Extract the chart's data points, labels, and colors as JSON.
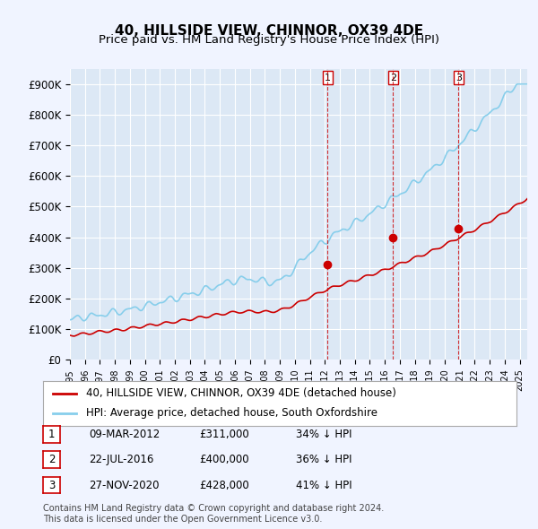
{
  "title": "40, HILLSIDE VIEW, CHINNOR, OX39 4DE",
  "subtitle": "Price paid vs. HM Land Registry's House Price Index (HPI)",
  "ylabel_ticks": [
    "£0",
    "£100K",
    "£200K",
    "£300K",
    "£400K",
    "£500K",
    "£600K",
    "£700K",
    "£800K",
    "£900K"
  ],
  "ylim": [
    0,
    950000
  ],
  "xlim_start": 1995.0,
  "xlim_end": 2025.5,
  "hpi_color": "#87CEEB",
  "price_color": "#CC0000",
  "sale_color": "#CC0000",
  "vline_color": "#CC0000",
  "background_color": "#f0f4ff",
  "plot_bg_color": "#dce8f5",
  "legend_label_red": "40, HILLSIDE VIEW, CHINNOR, OX39 4DE (detached house)",
  "legend_label_blue": "HPI: Average price, detached house, South Oxfordshire",
  "sales": [
    {
      "num": 1,
      "date_dec": 2012.19,
      "price": 311000,
      "label": "09-MAR-2012",
      "price_str": "£311,000",
      "hpi_str": "34% ↓ HPI"
    },
    {
      "num": 2,
      "date_dec": 2016.55,
      "price": 400000,
      "label": "22-JUL-2016",
      "price_str": "£400,000",
      "hpi_str": "36% ↓ HPI"
    },
    {
      "num": 3,
      "date_dec": 2020.91,
      "price": 428000,
      "label": "27-NOV-2020",
      "price_str": "£428,000",
      "hpi_str": "41% ↓ HPI"
    }
  ],
  "footer": "Contains HM Land Registry data © Crown copyright and database right 2024.\nThis data is licensed under the Open Government Licence v3.0.",
  "title_fontsize": 11,
  "subtitle_fontsize": 9.5,
  "axis_fontsize": 8.5,
  "legend_fontsize": 8.5,
  "table_fontsize": 8.5,
  "footer_fontsize": 7
}
